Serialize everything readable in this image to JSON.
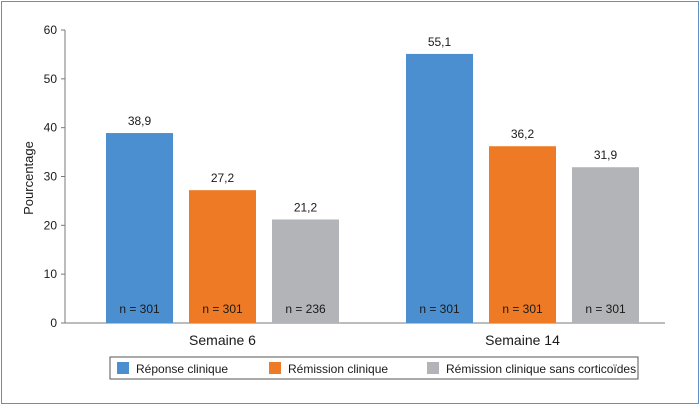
{
  "chart_data": {
    "type": "bar",
    "ylabel": "Pourcentage",
    "xlabel": "",
    "ylim": [
      0,
      60
    ],
    "yticks": [
      0,
      10,
      20,
      30,
      40,
      50,
      60
    ],
    "categories": [
      "Semaine 6",
      "Semaine 14"
    ],
    "series": [
      {
        "name": "Réponse clinique",
        "color": "#4b8fd0",
        "values": [
          38.9,
          55.1
        ],
        "value_labels": [
          "38,9",
          "55,1"
        ],
        "n_labels": [
          "n = 301",
          "n = 301"
        ]
      },
      {
        "name": "Rémission clinique",
        "color": "#ee7a25",
        "values": [
          27.2,
          36.2
        ],
        "value_labels": [
          "27,2",
          "36,2"
        ],
        "n_labels": [
          "n = 301",
          "n = 301"
        ]
      },
      {
        "name": "Rémission clinique sans corticoïdes",
        "color": "#b3b4b7",
        "values": [
          21.2,
          31.9
        ],
        "value_labels": [
          "21,2",
          "31,9"
        ],
        "n_labels": [
          "n = 236",
          "n = 301"
        ]
      }
    ],
    "grid": false,
    "legend_position": "bottom"
  }
}
